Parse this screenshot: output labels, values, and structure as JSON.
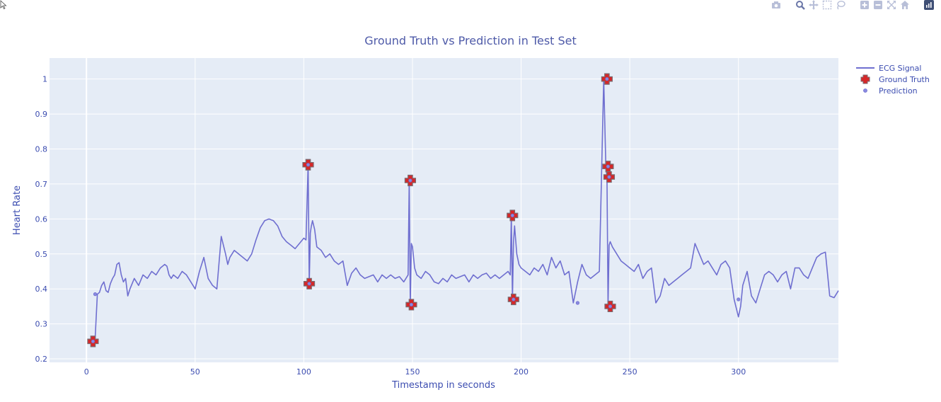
{
  "modebar": {
    "buttons": [
      "camera-icon",
      "zoom-icon",
      "pan-icon",
      "box-select-icon",
      "lasso-select-icon",
      "zoom-in-icon",
      "zoom-out-icon",
      "autoscale-icon",
      "reset-axes-icon",
      "plotly-logo-icon"
    ]
  },
  "colors": {
    "signal": "#6f6fd0",
    "ground_truth_fill": "#d62728",
    "ground_truth_edge": "#7a6a70",
    "prediction": "#8a8ae0",
    "plot_bg": "#e5ecf6",
    "grid": "#ffffff",
    "axis_text": "#3b4cb0"
  },
  "chart_data": {
    "type": "line",
    "title": "Ground Truth vs Prediction in Test Set",
    "xlabel": "Timestamp in seconds",
    "ylabel": "Heart Rate",
    "xlim": [
      -17,
      346
    ],
    "ylim": [
      0.19,
      1.06
    ],
    "xticks": [
      0,
      50,
      100,
      150,
      200,
      250,
      300
    ],
    "yticks": [
      0.2,
      0.3,
      0.4,
      0.5,
      0.6,
      0.7,
      0.8,
      0.9,
      1
    ],
    "grid": true,
    "legend_position": "top-right",
    "series": [
      {
        "name": "ECG Signal",
        "mode": "line",
        "x": [
          3,
          4,
          5,
          6,
          7,
          8,
          9,
          10,
          11,
          12,
          13,
          14,
          15,
          16,
          17,
          18,
          19,
          20,
          22,
          24,
          26,
          28,
          30,
          32,
          34,
          36,
          37,
          38,
          39,
          40,
          42,
          44,
          46,
          48,
          50,
          52,
          54,
          56,
          58,
          60,
          62,
          64,
          65,
          66,
          68,
          70,
          72,
          74,
          76,
          78,
          80,
          82,
          84,
          86,
          88,
          90,
          92,
          94,
          96,
          98,
          100,
          101,
          102,
          102.5,
          103,
          103.5,
          104,
          105,
          106,
          108,
          110,
          112,
          114,
          116,
          118,
          120,
          122,
          124,
          126,
          128,
          130,
          132,
          134,
          136,
          138,
          140,
          142,
          144,
          146,
          148,
          148.5,
          149,
          149.5,
          150,
          151,
          152,
          154,
          156,
          158,
          160,
          162,
          164,
          166,
          168,
          170,
          172,
          174,
          176,
          178,
          180,
          182,
          184,
          186,
          188,
          190,
          192,
          194,
          195,
          195.5,
          196,
          196.5,
          197,
          198,
          199,
          200,
          202,
          204,
          206,
          208,
          210,
          212,
          214,
          216,
          218,
          220,
          222,
          224,
          226,
          228,
          230,
          232,
          234,
          236,
          238,
          239,
          239.5,
          240,
          240.5,
          241,
          242,
          244,
          246,
          248,
          250,
          252,
          254,
          256,
          258,
          260,
          262,
          264,
          266,
          268,
          270,
          272,
          274,
          276,
          278,
          280,
          282,
          284,
          286,
          288,
          290,
          292,
          294,
          296,
          298,
          300,
          301,
          302,
          304,
          306,
          308,
          310,
          312,
          314,
          316,
          318,
          320,
          322,
          324,
          326,
          328,
          330,
          332,
          334,
          336,
          338,
          340,
          342,
          344,
          346
        ],
        "y": [
          0.25,
          0.26,
          0.385,
          0.39,
          0.41,
          0.42,
          0.395,
          0.39,
          0.415,
          0.43,
          0.44,
          0.47,
          0.475,
          0.44,
          0.42,
          0.43,
          0.38,
          0.4,
          0.43,
          0.41,
          0.44,
          0.43,
          0.45,
          0.44,
          0.46,
          0.47,
          0.465,
          0.44,
          0.43,
          0.44,
          0.43,
          0.45,
          0.44,
          0.42,
          0.4,
          0.45,
          0.49,
          0.43,
          0.41,
          0.4,
          0.55,
          0.5,
          0.47,
          0.49,
          0.51,
          0.5,
          0.49,
          0.48,
          0.5,
          0.54,
          0.575,
          0.595,
          0.6,
          0.595,
          0.58,
          0.55,
          0.535,
          0.525,
          0.515,
          0.53,
          0.545,
          0.54,
          0.755,
          0.415,
          0.56,
          0.58,
          0.595,
          0.57,
          0.52,
          0.51,
          0.49,
          0.5,
          0.48,
          0.47,
          0.48,
          0.41,
          0.445,
          0.46,
          0.44,
          0.43,
          0.435,
          0.44,
          0.42,
          0.44,
          0.43,
          0.44,
          0.43,
          0.435,
          0.42,
          0.44,
          0.71,
          0.355,
          0.53,
          0.52,
          0.46,
          0.44,
          0.43,
          0.45,
          0.44,
          0.42,
          0.415,
          0.43,
          0.42,
          0.44,
          0.43,
          0.435,
          0.44,
          0.42,
          0.44,
          0.43,
          0.44,
          0.445,
          0.43,
          0.44,
          0.43,
          0.44,
          0.45,
          0.44,
          0.61,
          0.37,
          0.535,
          0.58,
          0.5,
          0.47,
          0.46,
          0.45,
          0.44,
          0.46,
          0.45,
          0.47,
          0.44,
          0.49,
          0.46,
          0.48,
          0.44,
          0.45,
          0.36,
          0.42,
          0.47,
          0.44,
          0.43,
          0.44,
          0.45,
          1.0,
          0.75,
          0.72,
          0.35,
          0.525,
          0.535,
          0.52,
          0.5,
          0.48,
          0.47,
          0.46,
          0.45,
          0.47,
          0.43,
          0.45,
          0.46,
          0.36,
          0.38,
          0.43,
          0.41,
          0.42,
          0.43,
          0.44,
          0.45,
          0.46,
          0.53,
          0.5,
          0.47,
          0.48,
          0.46,
          0.44,
          0.47,
          0.48,
          0.46,
          0.37,
          0.32,
          0.35,
          0.41,
          0.45,
          0.38,
          0.36,
          0.4,
          0.44,
          0.45,
          0.44,
          0.42,
          0.44,
          0.45,
          0.4,
          0.46,
          0.46,
          0.44,
          0.43,
          0.46,
          0.49,
          0.5,
          0.505,
          0.38,
          0.375,
          0.395
        ]
      },
      {
        "name": "Ground Truth",
        "mode": "markers",
        "marker": "cross",
        "x": [
          3,
          102,
          102.5,
          149,
          149.5,
          196,
          196.5,
          239.5,
          240,
          240.5,
          241
        ],
        "y": [
          0.25,
          0.755,
          0.415,
          0.71,
          0.355,
          0.61,
          0.37,
          1.0,
          0.75,
          0.72,
          0.35
        ]
      },
      {
        "name": "Prediction",
        "mode": "markers",
        "marker": "circle",
        "x": [
          3,
          4,
          102,
          102.5,
          149,
          149.5,
          196,
          196.5,
          226,
          239.5,
          240,
          240.5,
          241,
          300
        ],
        "y": [
          0.25,
          0.385,
          0.755,
          0.415,
          0.71,
          0.355,
          0.61,
          0.37,
          0.36,
          1.0,
          0.75,
          0.72,
          0.35,
          0.37
        ]
      }
    ]
  }
}
